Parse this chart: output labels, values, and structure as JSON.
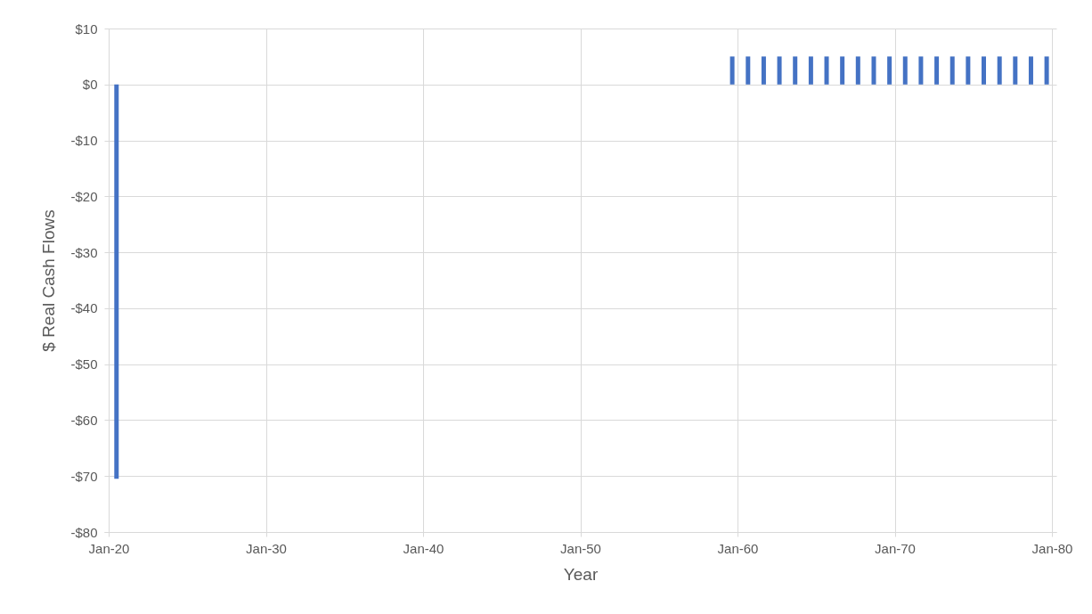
{
  "chart_data": {
    "type": "bar",
    "xlabel": "Year",
    "ylabel": "$ Real Cash Flows",
    "x": [
      "2020-07-01",
      "2059-09-01",
      "2060-09-01",
      "2061-09-01",
      "2062-09-01",
      "2063-09-01",
      "2064-09-01",
      "2065-09-01",
      "2066-09-01",
      "2067-09-01",
      "2068-09-01",
      "2069-09-01",
      "2070-09-01",
      "2071-09-01",
      "2072-09-01",
      "2073-09-01",
      "2074-09-01",
      "2075-09-01",
      "2076-09-01",
      "2077-09-01",
      "2078-09-01",
      "2079-09-01"
    ],
    "series": [
      {
        "color": "#4472c4",
        "values": [
          -70.5,
          5,
          5,
          5,
          5,
          5,
          5,
          5,
          5,
          5,
          5,
          5,
          5,
          5,
          5,
          5,
          5,
          5,
          5,
          5,
          5,
          5
        ]
      }
    ],
    "xlim": [
      "2020-01",
      "2080-01"
    ],
    "xticks": [
      {
        "value": "2020-01",
        "label": "Jan-20"
      },
      {
        "value": "2030-01",
        "label": "Jan-30"
      },
      {
        "value": "2040-01",
        "label": "Jan-40"
      },
      {
        "value": "2050-01",
        "label": "Jan-50"
      },
      {
        "value": "2060-01",
        "label": "Jan-60"
      },
      {
        "value": "2070-01",
        "label": "Jan-70"
      },
      {
        "value": "2080-01",
        "label": "Jan-80"
      }
    ],
    "ylim": [
      -80,
      10
    ],
    "yticks": [
      {
        "value": 10,
        "label": "$10"
      },
      {
        "value": 0,
        "label": "$0"
      },
      {
        "value": -10,
        "label": "-$10"
      },
      {
        "value": -20,
        "label": "-$20"
      },
      {
        "value": -30,
        "label": "-$30"
      },
      {
        "value": -40,
        "label": "-$40"
      },
      {
        "value": -50,
        "label": "-$50"
      },
      {
        "value": -60,
        "label": "-$60"
      },
      {
        "value": -70,
        "label": "-$70"
      },
      {
        "value": -80,
        "label": "-$80"
      }
    ],
    "grid": true,
    "legend": false
  }
}
